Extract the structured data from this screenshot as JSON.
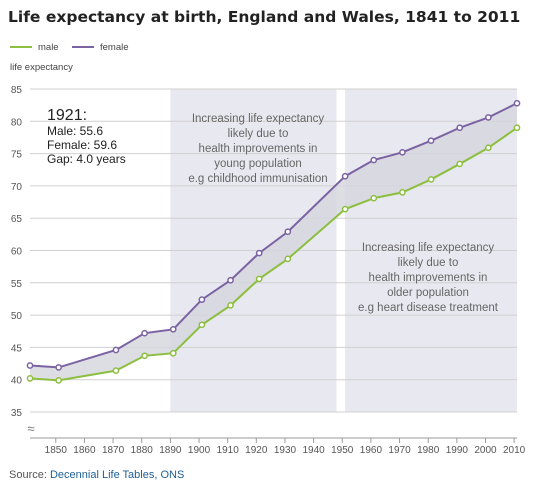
{
  "title": "Life expectancy at birth, England and Wales, 1841 to 2011",
  "source": {
    "prefix": "Source: ",
    "link_text": "Decennial Life Tables, ONS"
  },
  "colors": {
    "male": "#8cbf3f",
    "female": "#7b62a3",
    "band": "#e8e8f0",
    "between": "#d4d4dd"
  },
  "chart_data": {
    "type": "line",
    "ylabel": "life expectancy",
    "xlabel": "",
    "ylim": [
      35,
      85
    ],
    "xlim": [
      1841,
      2011
    ],
    "yticks": [
      35,
      40,
      45,
      50,
      55,
      60,
      65,
      70,
      75,
      80,
      85
    ],
    "xticks": [
      1850,
      1860,
      1870,
      1880,
      1890,
      1900,
      1910,
      1920,
      1930,
      1940,
      1950,
      1960,
      1970,
      1980,
      1990,
      2000,
      2010
    ],
    "grid": true,
    "legend_position": "top-left",
    "x": [
      1841,
      1851,
      1871,
      1881,
      1891,
      1901,
      1911,
      1921,
      1931,
      1951,
      1961,
      1971,
      1981,
      1991,
      2001,
      2011
    ],
    "series": [
      {
        "name": "male",
        "values": [
          40.2,
          39.9,
          41.4,
          43.7,
          44.1,
          48.5,
          51.5,
          55.6,
          58.7,
          66.4,
          68.1,
          69.0,
          71.0,
          73.4,
          75.9,
          79.0
        ]
      },
      {
        "name": "female",
        "values": [
          42.2,
          41.9,
          44.6,
          47.2,
          47.8,
          52.4,
          55.4,
          59.6,
          62.9,
          71.5,
          74.0,
          75.2,
          77.0,
          79.0,
          80.6,
          82.8
        ]
      }
    ],
    "bands": [
      {
        "from": 1890,
        "to": 1948,
        "text": [
          "Increasing life expectancy",
          "likely due to",
          "health improvements in",
          "young population",
          "e.g childhood immunisation"
        ]
      },
      {
        "from": 1951,
        "to": 2011,
        "text": [
          "Increasing life expectancy",
          "likely due to",
          "health improvements in",
          "older population",
          "e.g heart disease treatment"
        ]
      }
    ],
    "callout": {
      "heading": "1921:",
      "lines": [
        "Male: 55.6",
        "Female: 59.6",
        "Gap: 4.0 years"
      ]
    },
    "axis_break_symbol": "≈"
  }
}
